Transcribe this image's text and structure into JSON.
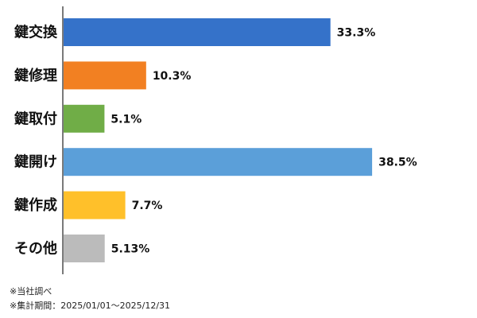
{
  "chart_data": {
    "type": "bar",
    "orientation": "horizontal",
    "categories": [
      "鍵交換",
      "鍵修理",
      "鍵取付",
      "鍵開け",
      "鍵作成",
      "その他"
    ],
    "values": [
      33.3,
      10.3,
      5.1,
      38.5,
      7.7,
      5.13
    ],
    "value_labels": [
      "33.3%",
      "10.3%",
      "5.1%",
      "38.5%",
      "7.7%",
      "5.13%"
    ],
    "colors": [
      "#3572c9",
      "#f28022",
      "#70ad47",
      "#5b9fd9",
      "#ffc02a",
      "#bbbbbb"
    ],
    "xlim": [
      0,
      50
    ],
    "grid": false,
    "legend": "none",
    "title": "",
    "xlabel": "",
    "ylabel": ""
  },
  "notes": {
    "source": "※当社調べ",
    "period": "※集計期間：2025/01/01～2025/12/31"
  }
}
